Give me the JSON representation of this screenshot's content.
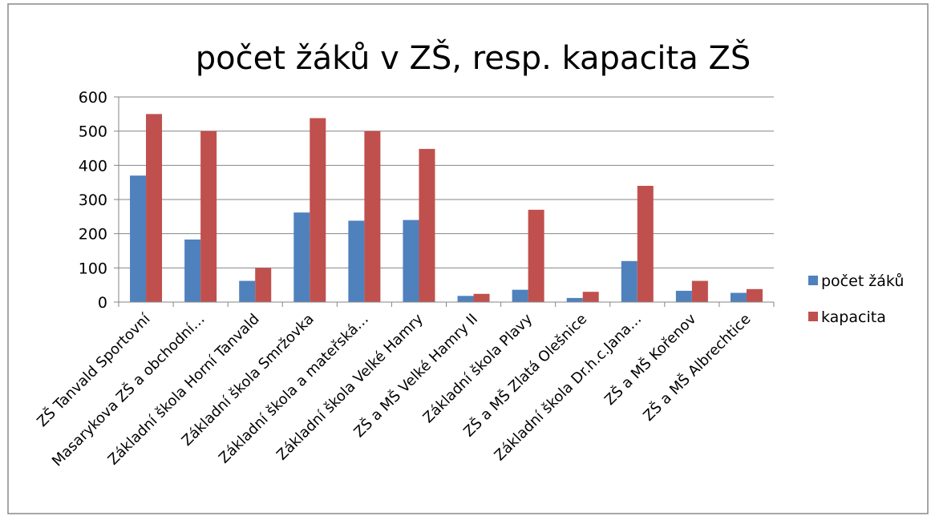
{
  "chart_data": {
    "type": "bar",
    "title": "počet žáků v ZŠ, resp. kapacita ZŠ",
    "categories": [
      "ZŠ Tanvald Sportovní",
      "Masarykova ZŠ a obchodní…",
      "Základní škola Horní Tanvald",
      "Základní škola Smržovka",
      "Základní škola a mateřská…",
      "Základní škola Velké Hamry",
      "ZŠ a MŠ Velké Hamry II",
      "Základní škola Plavy",
      "ZŠ a MŠ Zlatá Olešnice",
      "Základní škola Dr.h.c.Jana…",
      "ZŠ a MŠ Kořenov",
      "ZŠ a MŠ Albrechtice"
    ],
    "series": [
      {
        "name": "počet žáků",
        "color": "#4f81bd",
        "values": [
          370,
          183,
          62,
          262,
          238,
          240,
          18,
          36,
          12,
          120,
          33,
          27
        ]
      },
      {
        "name": "kapacita",
        "color": "#c0504d",
        "values": [
          550,
          500,
          100,
          538,
          500,
          448,
          24,
          270,
          30,
          340,
          62,
          38
        ]
      }
    ],
    "ylim": [
      0,
      600
    ],
    "yticks": [
      0,
      100,
      200,
      300,
      400,
      500,
      600
    ],
    "grid": true,
    "legend": "right"
  }
}
